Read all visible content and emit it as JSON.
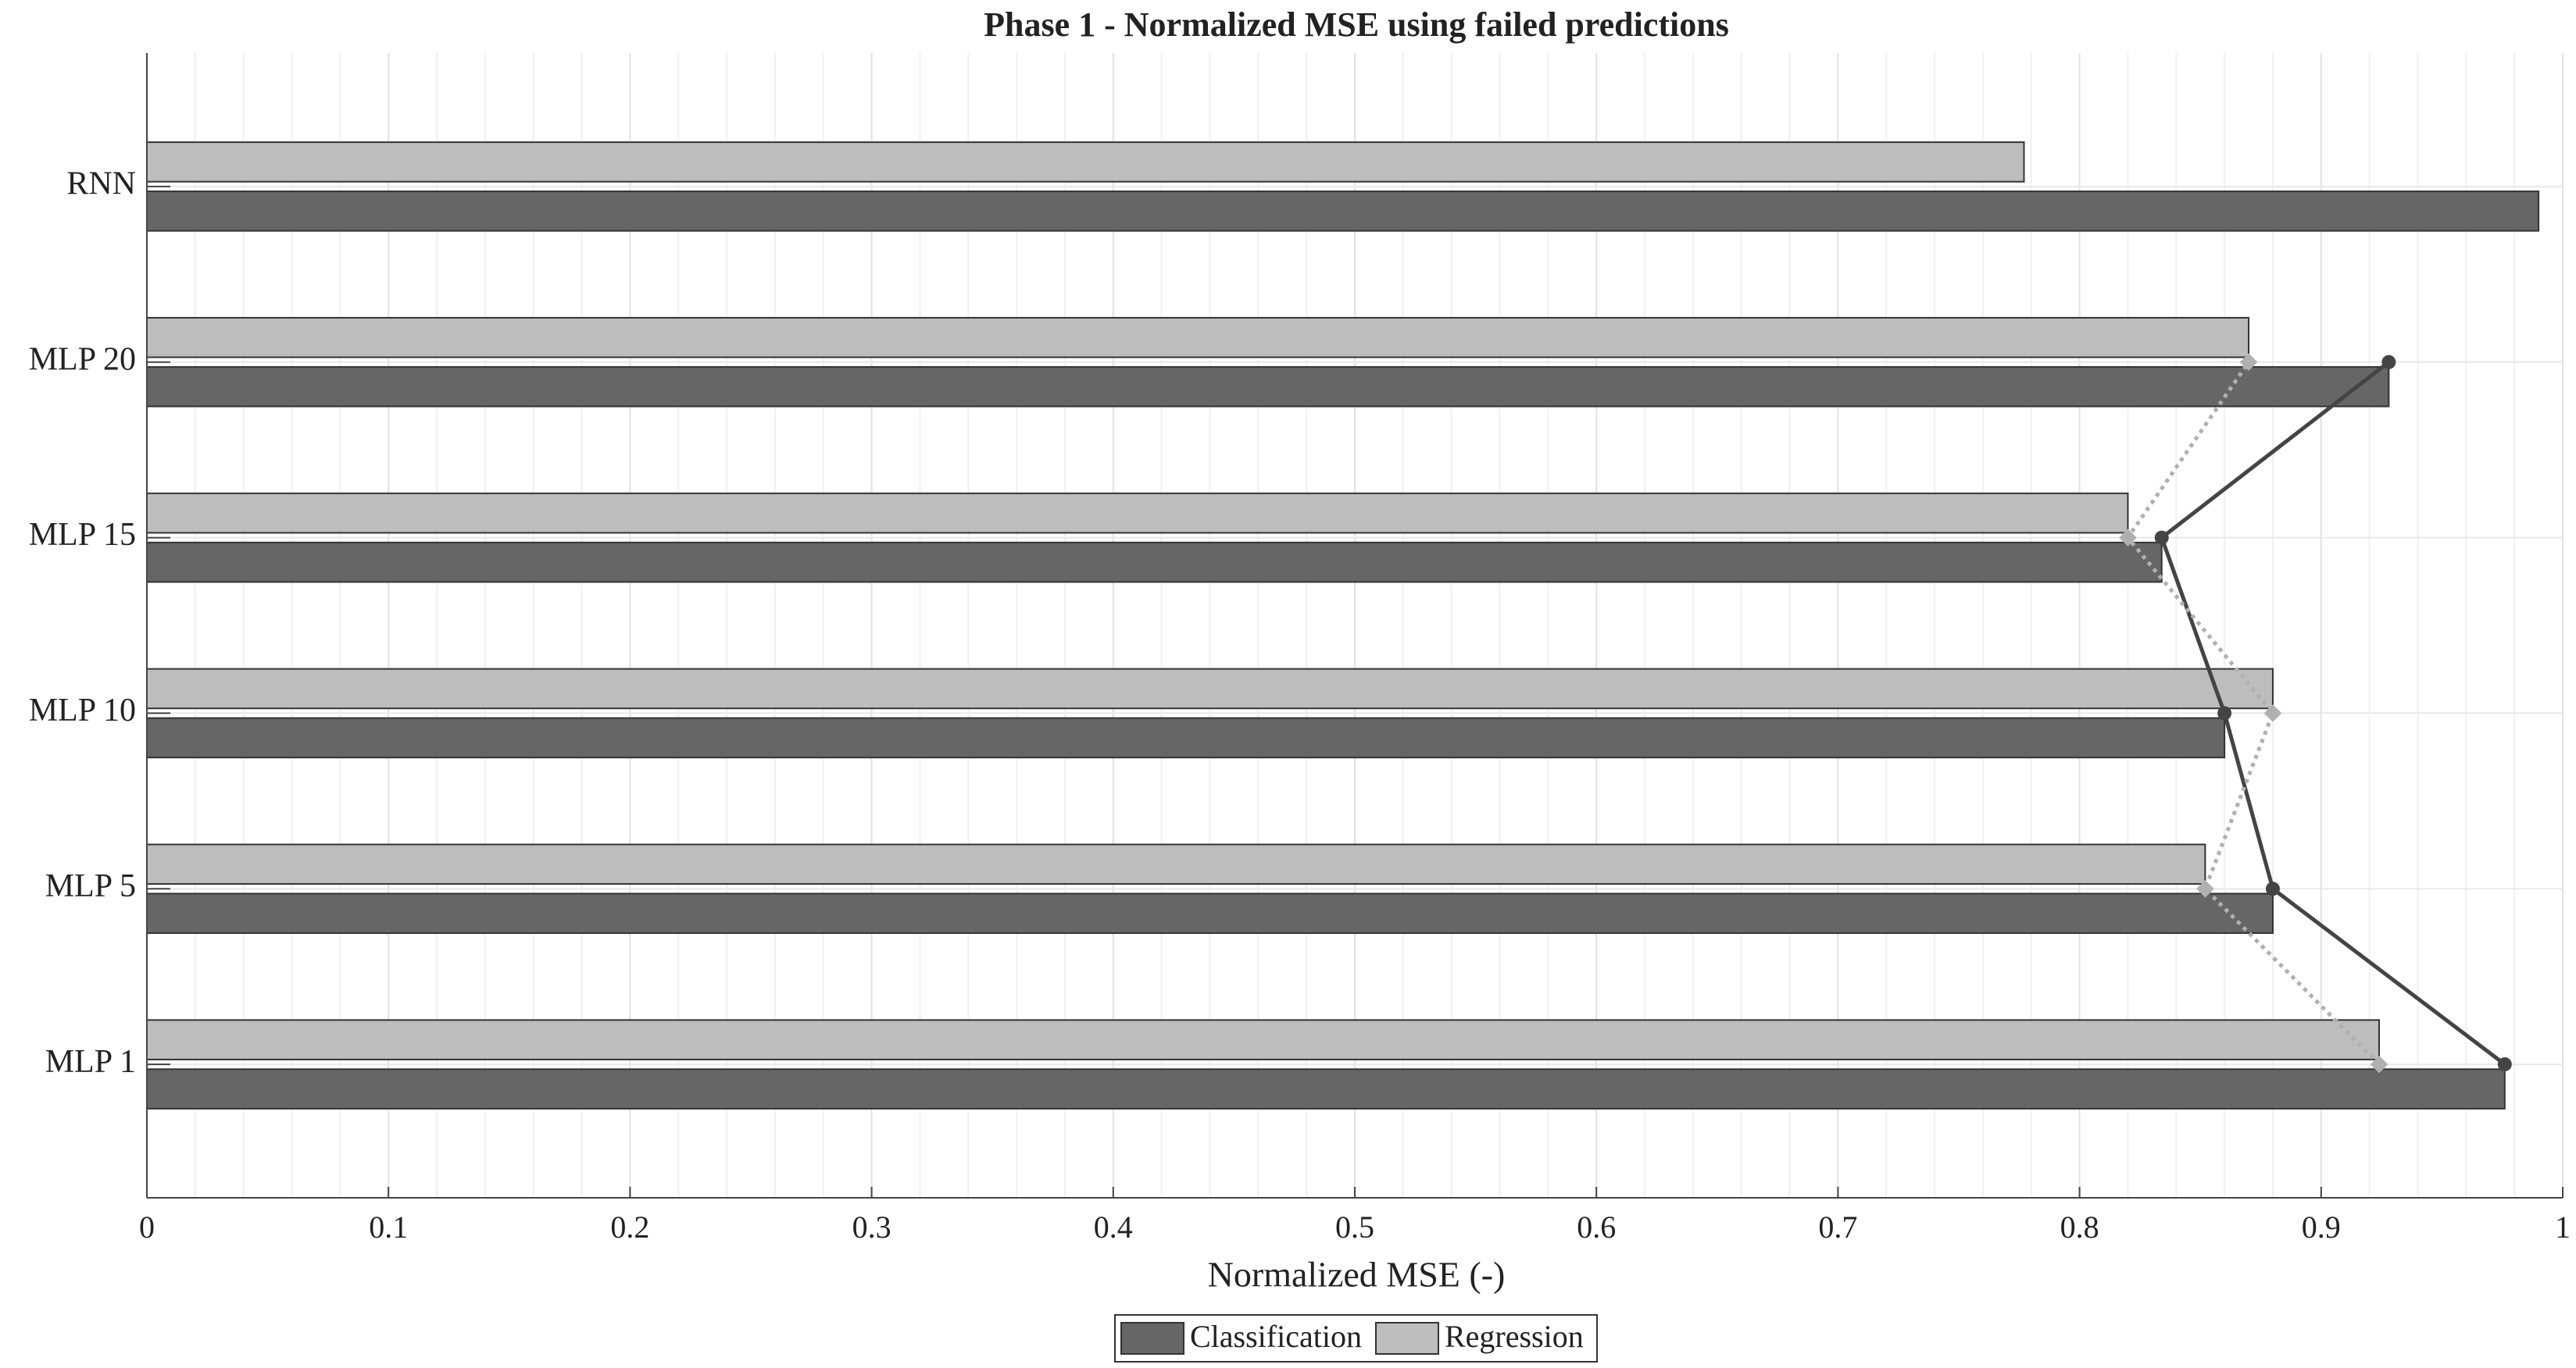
{
  "chart_data": {
    "type": "bar",
    "orientation": "horizontal",
    "title": "Phase 1 - Normalized MSE using failed predictions",
    "x_label": "Normalized MSE (-)",
    "categories": [
      "MLP 1",
      "MLP 5",
      "MLP 10",
      "MLP 15",
      "MLP 20",
      "RNN"
    ],
    "series": [
      {
        "name": "Classification",
        "color": "#666666",
        "line_style": "solid",
        "values": [
          0.976,
          0.88,
          0.86,
          0.834,
          0.928,
          0.99
        ]
      },
      {
        "name": "Regression",
        "color": "#bdbdbd",
        "line_style": "dotted",
        "values": [
          0.924,
          0.852,
          0.88,
          0.82,
          0.87,
          0.777
        ]
      }
    ],
    "trend_excludes_last": true,
    "xlim": [
      0,
      1
    ],
    "xticks": [
      0,
      0.1,
      0.2,
      0.3,
      0.4,
      0.5,
      0.6,
      0.7,
      0.8,
      0.9,
      1
    ],
    "grid": true,
    "legend": "bottom"
  }
}
